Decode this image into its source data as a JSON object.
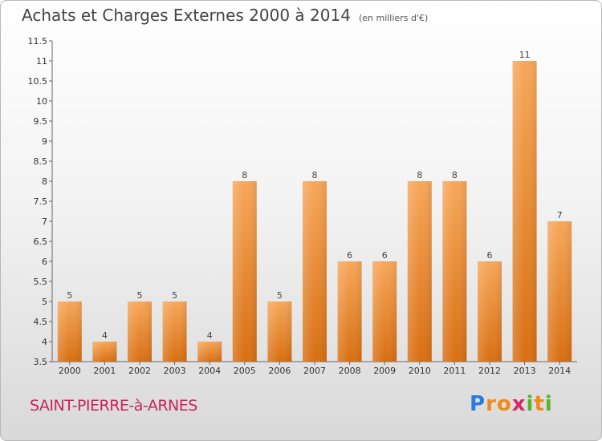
{
  "header": {
    "title": "Achats et Charges Externes 2000 à 2014",
    "unit": "(en milliers d'€)"
  },
  "footer": {
    "place": "SAINT-PIERRE-à-ARNES",
    "logo_letters": [
      "P",
      "r",
      "o",
      "x",
      "i",
      "t",
      "i"
    ],
    "logo_colors": [
      "#2a7ed8",
      "#f08a1c",
      "#f08a1c",
      "#d42a6a",
      "#5ab12e",
      "#f08a1c",
      "#5ab12e"
    ]
  },
  "chart_data": {
    "type": "bar",
    "title": "Achats et Charges Externes 2000 à 2014",
    "categories": [
      "2000",
      "2001",
      "2002",
      "2003",
      "2004",
      "2005",
      "2006",
      "2007",
      "2008",
      "2009",
      "2010",
      "2011",
      "2012",
      "2013",
      "2014"
    ],
    "values": [
      5,
      4,
      5,
      5,
      4,
      8,
      5,
      8,
      6,
      6,
      8,
      8,
      6,
      11,
      7
    ],
    "data_labels": [
      "5",
      "4",
      "5",
      "5",
      "4",
      "8",
      "5",
      "8",
      "6",
      "6",
      "8",
      "8",
      "6",
      "11",
      "7"
    ],
    "ylim": [
      3.5,
      11.5
    ],
    "yticks": [
      3.5,
      4,
      4.5,
      5,
      5.5,
      6,
      6.5,
      7,
      7.5,
      8,
      8.5,
      9,
      9.5,
      10,
      10.5,
      11,
      11.5
    ],
    "ytick_labels": [
      "3.5",
      "4",
      "4.5",
      "5",
      "5.5",
      "6",
      "6.5",
      "7",
      "7.5",
      "8",
      "8.5",
      "9",
      "9.5",
      "10",
      "10.5",
      "11",
      "11.5"
    ],
    "grid": false,
    "bar_color": "#f08a1c"
  }
}
